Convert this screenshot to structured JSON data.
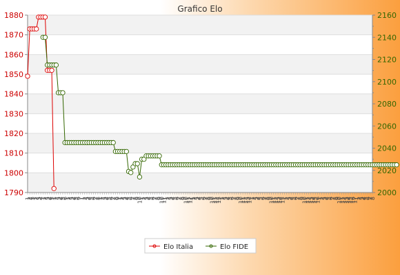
{
  "chart_data": {
    "type": "line",
    "title": "Grafico Elo",
    "y_left": {
      "ylim": [
        1790,
        1880
      ],
      "ticks": [
        1790,
        1800,
        1810,
        1820,
        1830,
        1840,
        1850,
        1860,
        1870,
        1880
      ]
    },
    "y_right": {
      "ylim": [
        2000,
        2160
      ],
      "ticks": [
        2000,
        2020,
        2040,
        2060,
        2080,
        2100,
        2120,
        2140,
        2160
      ]
    },
    "x_tick_labels": [
      "1",
      "2",
      "3",
      "1",
      "2",
      "3",
      "4",
      "1",
      "2",
      "3",
      "4",
      "5",
      "1",
      "2",
      "3",
      "4",
      "5",
      "6",
      "1",
      "2",
      "3",
      "4",
      "5",
      "6",
      "7",
      "1",
      "2",
      "3",
      "4",
      "5",
      "6",
      "7",
      "8",
      "1",
      "2",
      "3",
      "4",
      "5",
      "6",
      "7",
      "8",
      "9",
      "1",
      "2",
      "3",
      "4",
      "5",
      "6",
      "7",
      "8",
      "9",
      "10",
      "1",
      "2",
      "3",
      "4",
      "5",
      "6",
      "7",
      "8",
      "9",
      "10",
      "11",
      "1",
      "2",
      "3",
      "4",
      "5",
      "6",
      "7",
      "8",
      "9",
      "10",
      "11",
      "12",
      "1",
      "2",
      "3",
      "4",
      "5",
      "6",
      "7",
      "8",
      "9",
      "10",
      "11",
      "12",
      "13",
      "1",
      "2",
      "3",
      "4",
      "5",
      "6",
      "7",
      "8",
      "9",
      "10",
      "11",
      "12",
      "13",
      "14",
      "1",
      "2",
      "3",
      "4",
      "5",
      "6",
      "7",
      "8",
      "9",
      "10",
      "11",
      "12",
      "13",
      "14",
      "15",
      "1",
      "2",
      "3",
      "4",
      "5",
      "6",
      "7",
      "8",
      "9",
      "10",
      "11",
      "12",
      "13",
      "14",
      "15",
      "16",
      "1",
      "2",
      "3",
      "4",
      "5",
      "6",
      "7",
      "8",
      "9",
      "10",
      "11",
      "12",
      "13",
      "14",
      "15",
      "16",
      "17",
      "1",
      "2",
      "3",
      "4",
      "5",
      "6",
      "7",
      "8"
    ],
    "grid": true,
    "legend": "bottom-center",
    "series": [
      {
        "name": "Elo Italia",
        "axis": "left",
        "color": "#dd0000",
        "points": [
          [
            0,
            1849
          ],
          [
            1,
            1873
          ],
          [
            2,
            1873
          ],
          [
            3,
            1873
          ],
          [
            4,
            1873
          ],
          [
            5,
            1879
          ],
          [
            6,
            1879
          ],
          [
            7,
            1879
          ],
          [
            8,
            1879
          ],
          [
            9,
            1852
          ],
          [
            10,
            1852
          ],
          [
            11,
            1852
          ],
          [
            12,
            1792
          ]
        ]
      },
      {
        "name": "Elo FIDE",
        "axis": "right",
        "color": "#336600",
        "points": [
          [
            7,
            2140
          ],
          [
            8,
            2140
          ],
          [
            9,
            2115
          ],
          [
            10,
            2115
          ],
          [
            11,
            2115
          ],
          [
            12,
            2115
          ],
          [
            13,
            2115
          ],
          [
            14,
            2090
          ],
          [
            15,
            2090
          ],
          [
            16,
            2090
          ],
          [
            17,
            2045
          ],
          [
            18,
            2045
          ],
          [
            19,
            2045
          ],
          [
            20,
            2045
          ],
          [
            21,
            2045
          ],
          [
            22,
            2045
          ],
          [
            23,
            2045
          ],
          [
            24,
            2045
          ],
          [
            25,
            2045
          ],
          [
            26,
            2045
          ],
          [
            27,
            2045
          ],
          [
            28,
            2045
          ],
          [
            29,
            2045
          ],
          [
            30,
            2045
          ],
          [
            31,
            2045
          ],
          [
            32,
            2045
          ],
          [
            33,
            2045
          ],
          [
            34,
            2045
          ],
          [
            35,
            2045
          ],
          [
            36,
            2045
          ],
          [
            37,
            2045
          ],
          [
            38,
            2045
          ],
          [
            39,
            2045
          ],
          [
            40,
            2037
          ],
          [
            41,
            2037
          ],
          [
            42,
            2037
          ],
          [
            43,
            2037
          ],
          [
            44,
            2037
          ],
          [
            45,
            2037
          ],
          [
            46,
            2019
          ],
          [
            47,
            2018
          ],
          [
            48,
            2023
          ],
          [
            49,
            2026
          ],
          [
            50,
            2026
          ],
          [
            51,
            2014
          ],
          [
            52,
            2030
          ],
          [
            53,
            2030
          ],
          [
            54,
            2033
          ],
          [
            55,
            2033
          ],
          [
            56,
            2033
          ],
          [
            57,
            2033
          ],
          [
            58,
            2033
          ],
          [
            59,
            2033
          ],
          [
            60,
            2033
          ],
          [
            61,
            2025
          ],
          [
            62,
            2025
          ],
          [
            63,
            2025
          ],
          [
            64,
            2025
          ],
          [
            65,
            2025
          ],
          [
            66,
            2025
          ],
          [
            67,
            2025
          ],
          [
            68,
            2025
          ],
          [
            69,
            2025
          ],
          [
            70,
            2025
          ],
          [
            71,
            2025
          ],
          [
            72,
            2025
          ],
          [
            73,
            2025
          ],
          [
            74,
            2025
          ],
          [
            75,
            2025
          ],
          [
            76,
            2025
          ],
          [
            77,
            2025
          ],
          [
            78,
            2025
          ],
          [
            79,
            2025
          ],
          [
            80,
            2025
          ],
          [
            81,
            2025
          ],
          [
            82,
            2025
          ],
          [
            83,
            2025
          ],
          [
            84,
            2025
          ],
          [
            85,
            2025
          ],
          [
            86,
            2025
          ],
          [
            87,
            2025
          ],
          [
            88,
            2025
          ],
          [
            89,
            2025
          ],
          [
            90,
            2025
          ],
          [
            91,
            2025
          ],
          [
            92,
            2025
          ],
          [
            93,
            2025
          ],
          [
            94,
            2025
          ],
          [
            95,
            2025
          ],
          [
            96,
            2025
          ],
          [
            97,
            2025
          ],
          [
            98,
            2025
          ],
          [
            99,
            2025
          ],
          [
            100,
            2025
          ],
          [
            101,
            2025
          ],
          [
            102,
            2025
          ],
          [
            103,
            2025
          ],
          [
            104,
            2025
          ],
          [
            105,
            2025
          ],
          [
            106,
            2025
          ],
          [
            107,
            2025
          ],
          [
            108,
            2025
          ],
          [
            109,
            2025
          ],
          [
            110,
            2025
          ],
          [
            111,
            2025
          ],
          [
            112,
            2025
          ],
          [
            113,
            2025
          ],
          [
            114,
            2025
          ],
          [
            115,
            2025
          ],
          [
            116,
            2025
          ],
          [
            117,
            2025
          ],
          [
            118,
            2025
          ],
          [
            119,
            2025
          ],
          [
            120,
            2025
          ],
          [
            121,
            2025
          ],
          [
            122,
            2025
          ],
          [
            123,
            2025
          ],
          [
            124,
            2025
          ],
          [
            125,
            2025
          ],
          [
            126,
            2025
          ],
          [
            127,
            2025
          ],
          [
            128,
            2025
          ],
          [
            129,
            2025
          ],
          [
            130,
            2025
          ],
          [
            131,
            2025
          ],
          [
            132,
            2025
          ],
          [
            133,
            2025
          ],
          [
            134,
            2025
          ],
          [
            135,
            2025
          ],
          [
            136,
            2025
          ],
          [
            137,
            2025
          ],
          [
            138,
            2025
          ],
          [
            139,
            2025
          ],
          [
            140,
            2025
          ],
          [
            141,
            2025
          ],
          [
            142,
            2025
          ],
          [
            143,
            2025
          ],
          [
            144,
            2025
          ],
          [
            145,
            2025
          ],
          [
            146,
            2025
          ],
          [
            147,
            2025
          ],
          [
            148,
            2025
          ],
          [
            149,
            2025
          ],
          [
            150,
            2025
          ],
          [
            151,
            2025
          ],
          [
            152,
            2025
          ],
          [
            153,
            2025
          ],
          [
            154,
            2025
          ],
          [
            155,
            2025
          ],
          [
            156,
            2025
          ],
          [
            157,
            2025
          ],
          [
            158,
            2025
          ],
          [
            159,
            2025
          ],
          [
            160,
            2025
          ],
          [
            161,
            2025
          ],
          [
            162,
            2025
          ],
          [
            163,
            2025
          ],
          [
            164,
            2025
          ],
          [
            165,
            2025
          ],
          [
            166,
            2025
          ],
          [
            167,
            2025
          ],
          [
            168,
            2025
          ]
        ]
      }
    ]
  }
}
